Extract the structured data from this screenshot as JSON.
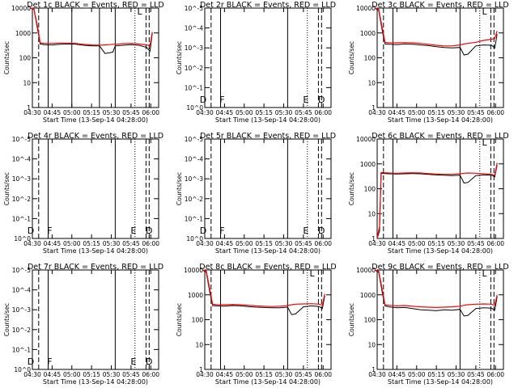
{
  "figure": {
    "x_axis_title": "Start Time (13-Sep-14 04:28:00)",
    "y_axis_title": "Counts/sec",
    "x_tick_labels": [
      "04:30",
      "04:45",
      "05:00",
      "05:15",
      "05:30",
      "05:45",
      "06:00"
    ],
    "colors": {
      "events": "#000000",
      "lld": "#ff0000",
      "axes": "#000000",
      "background": "#ffffff"
    }
  },
  "chart_data": [
    {
      "type": "line",
      "title": "Det 1c BLACK = Events, RED = LLD",
      "scale": "log",
      "ylim": [
        1,
        10000
      ],
      "y_tick_labels": [
        "1",
        "10",
        "100",
        "1000",
        "10000"
      ],
      "lines_solid": [
        4.7,
        5.0,
        5.35,
        5.55
      ],
      "lines_dashed": [
        4.58,
        5.94,
        5.98
      ],
      "lines_dotted": [
        5.8
      ],
      "markers": [
        {
          "text": "L",
          "x": 5.86
        }
      ],
      "x": [
        4.47,
        4.52,
        4.57,
        4.6,
        4.65,
        4.75,
        4.85,
        4.95,
        5.05,
        5.15,
        5.25,
        5.35,
        5.42,
        5.48,
        5.52,
        5.55,
        5.65,
        5.75,
        5.85,
        5.95,
        5.99,
        6.02
      ],
      "series": [
        {
          "name": "Events",
          "values": [
            10000,
            9000,
            1200,
            360,
            340,
            330,
            350,
            360,
            350,
            320,
            300,
            300,
            150,
            160,
            170,
            300,
            320,
            340,
            320,
            260,
            180,
            1000
          ]
        },
        {
          "name": "LLD",
          "values": [
            10000,
            9500,
            1500,
            400,
            380,
            380,
            390,
            390,
            380,
            350,
            330,
            320,
            330,
            340,
            350,
            350,
            370,
            380,
            360,
            330,
            300,
            1100
          ]
        }
      ]
    },
    {
      "type": "line",
      "title": "Det 2r BLACK = Events, RED = LLD",
      "scale": "log",
      "ylim": [
        1,
        1e-06
      ],
      "y_tick_labels": [
        "10^0",
        "10^-1",
        "10^-2",
        "10^-3",
        "10^-4",
        "10^-5"
      ],
      "lines_solid": [
        4.7,
        5.55
      ],
      "lines_dashed": [
        4.58,
        5.94,
        5.98
      ],
      "lines_dotted": [
        5.8
      ],
      "markers": [
        {
          "text": "D",
          "x": 4.48
        },
        {
          "text": "F",
          "x": 4.72
        },
        {
          "text": "E",
          "x": 5.78
        },
        {
          "text": "D",
          "x": 5.98
        }
      ],
      "x": [],
      "series": []
    },
    {
      "type": "line",
      "title": "Det 3c BLACK = Events, RED = LLD",
      "scale": "log",
      "ylim": [
        1,
        10000
      ],
      "y_tick_labels": [
        "1",
        "10",
        "100",
        "1000",
        "10000"
      ],
      "lines_solid": [
        4.7,
        5.55
      ],
      "lines_dashed": [
        4.58,
        5.94,
        5.98
      ],
      "lines_dotted": [
        5.8
      ],
      "markers": [
        {
          "text": "L",
          "x": 5.86
        }
      ],
      "x": [
        4.47,
        4.52,
        4.57,
        4.6,
        4.65,
        4.75,
        4.85,
        4.95,
        5.05,
        5.15,
        5.25,
        5.35,
        5.45,
        5.55,
        5.6,
        5.65,
        5.75,
        5.85,
        5.95,
        5.99,
        6.02
      ],
      "series": [
        {
          "name": "Events",
          "values": [
            10000,
            8000,
            1000,
            360,
            350,
            340,
            360,
            350,
            330,
            310,
            280,
            260,
            250,
            260,
            130,
            140,
            300,
            330,
            320,
            250,
            900
          ]
        },
        {
          "name": "LLD",
          "values": [
            10000,
            9000,
            1300,
            420,
            400,
            400,
            410,
            400,
            380,
            350,
            320,
            300,
            300,
            330,
            360,
            380,
            420,
            500,
            560,
            600,
            1200
          ]
        }
      ]
    },
    {
      "type": "line",
      "title": "Det 4r BLACK = Events, RED = LLD",
      "scale": "log",
      "ylim": [
        1,
        1e-06
      ],
      "y_tick_labels": [
        "10^0",
        "10^-1",
        "10^-2",
        "10^-3",
        "10^-4",
        "10^-5"
      ],
      "lines_solid": [
        4.7,
        5.55
      ],
      "lines_dashed": [
        4.58,
        5.94,
        5.98
      ],
      "lines_dotted": [
        5.8
      ],
      "markers": [
        {
          "text": "D",
          "x": 4.48
        },
        {
          "text": "F",
          "x": 4.72
        },
        {
          "text": "E",
          "x": 5.78
        },
        {
          "text": "D",
          "x": 5.98
        }
      ],
      "x": [],
      "series": []
    },
    {
      "type": "line",
      "title": "Det 5r BLACK = Events, RED = LLD",
      "scale": "log",
      "ylim": [
        1,
        1e-06
      ],
      "y_tick_labels": [
        "10^0",
        "10^-1",
        "10^-2",
        "10^-3",
        "10^-4",
        "10^-5"
      ],
      "lines_solid": [
        4.7,
        5.55
      ],
      "lines_dashed": [
        4.58,
        5.94,
        5.98
      ],
      "lines_dotted": [
        5.8
      ],
      "markers": [
        {
          "text": "D",
          "x": 4.48
        },
        {
          "text": "F",
          "x": 4.72
        },
        {
          "text": "E",
          "x": 5.78
        },
        {
          "text": "D",
          "x": 5.98
        }
      ],
      "x": [],
      "series": []
    },
    {
      "type": "line",
      "title": "Det 6c BLACK = Events, RED = LLD",
      "scale": "log",
      "ylim": [
        1,
        10000
      ],
      "y_tick_labels": [
        "1",
        "10",
        "100",
        "1000",
        "10000"
      ],
      "lines_solid": [
        4.7,
        5.55
      ],
      "lines_dashed": [
        4.58,
        5.94,
        5.98
      ],
      "lines_dotted": [
        5.8
      ],
      "markers": [
        {
          "text": "L",
          "x": 5.86
        }
      ],
      "x": [
        4.5,
        4.53,
        4.55,
        4.6,
        4.65,
        4.75,
        4.85,
        4.95,
        5.05,
        5.15,
        5.25,
        5.35,
        5.45,
        5.55,
        5.6,
        5.65,
        5.75,
        5.85,
        5.95,
        5.99,
        6.02
      ],
      "series": [
        {
          "name": "Events",
          "values": [
            1,
            2,
            420,
            410,
            400,
            390,
            400,
            410,
            400,
            380,
            360,
            350,
            340,
            350,
            170,
            180,
            340,
            360,
            350,
            300,
            900
          ]
        },
        {
          "name": "LLD",
          "values": [
            1,
            3,
            450,
            440,
            430,
            420,
            430,
            440,
            430,
            410,
            390,
            380,
            380,
            400,
            420,
            430,
            420,
            400,
            380,
            350,
            1100
          ]
        }
      ]
    },
    {
      "type": "line",
      "title": "Det 7r BLACK = Events, RED = LLD",
      "scale": "log",
      "ylim": [
        1,
        1e-06
      ],
      "y_tick_labels": [
        "10^0",
        "10^-1",
        "10^-2",
        "10^-3",
        "10^-4",
        "10^-5"
      ],
      "lines_solid": [
        4.7,
        5.55
      ],
      "lines_dashed": [
        4.58,
        5.94,
        5.98
      ],
      "lines_dotted": [
        5.8
      ],
      "markers": [
        {
          "text": "D",
          "x": 4.48
        },
        {
          "text": "F",
          "x": 4.72
        },
        {
          "text": "E",
          "x": 5.78
        },
        {
          "text": "D",
          "x": 5.98
        }
      ],
      "x": [],
      "series": []
    },
    {
      "type": "line",
      "title": "Det 8c BLACK = Events, RED = LLD",
      "scale": "log",
      "ylim": [
        1,
        10000
      ],
      "y_tick_labels": [
        "1",
        "10",
        "100",
        "1000",
        "10000"
      ],
      "lines_solid": [
        4.7,
        5.55
      ],
      "lines_dashed": [
        4.58,
        5.94,
        5.98
      ],
      "lines_dotted": [
        5.8
      ],
      "markers": [
        {
          "text": "L",
          "x": 5.86
        }
      ],
      "x": [
        4.47,
        4.52,
        4.57,
        4.6,
        4.65,
        4.75,
        4.85,
        4.95,
        5.05,
        5.15,
        5.25,
        5.35,
        5.45,
        5.55,
        5.6,
        5.65,
        5.75,
        5.85,
        5.95,
        5.99,
        6.02
      ],
      "series": [
        {
          "name": "Events",
          "values": [
            10000,
            8000,
            1000,
            370,
            360,
            350,
            370,
            360,
            340,
            320,
            310,
            300,
            300,
            320,
            160,
            170,
            330,
            360,
            340,
            280,
            900
          ]
        },
        {
          "name": "LLD",
          "values": [
            10000,
            9000,
            1300,
            420,
            400,
            400,
            410,
            400,
            380,
            360,
            350,
            340,
            350,
            370,
            400,
            420,
            430,
            440,
            420,
            380,
            1100
          ]
        }
      ]
    },
    {
      "type": "line",
      "title": "Det 9c BLACK = Events, RED = LLD",
      "scale": "log",
      "ylim": [
        1,
        10000
      ],
      "y_tick_labels": [
        "1",
        "10",
        "100",
        "1000",
        "10000"
      ],
      "lines_solid": [
        4.7,
        5.55
      ],
      "lines_dashed": [
        4.58,
        5.94,
        5.98
      ],
      "lines_dotted": [
        5.8
      ],
      "markers": [
        {
          "text": "L",
          "x": 5.86
        }
      ],
      "x": [
        4.47,
        4.52,
        4.57,
        4.6,
        4.65,
        4.75,
        4.85,
        4.95,
        5.05,
        5.15,
        5.25,
        5.35,
        5.45,
        5.55,
        5.6,
        5.65,
        5.75,
        5.85,
        5.95,
        5.99,
        6.02
      ],
      "series": [
        {
          "name": "Events",
          "values": [
            10000,
            8000,
            1000,
            360,
            330,
            300,
            310,
            280,
            250,
            240,
            230,
            250,
            240,
            260,
            140,
            150,
            280,
            300,
            290,
            240,
            850
          ]
        },
        {
          "name": "LLD",
          "values": [
            10000,
            9000,
            1300,
            400,
            380,
            360,
            370,
            350,
            330,
            320,
            310,
            320,
            330,
            350,
            380,
            400,
            420,
            430,
            420,
            380,
            1000
          ]
        }
      ]
    }
  ]
}
